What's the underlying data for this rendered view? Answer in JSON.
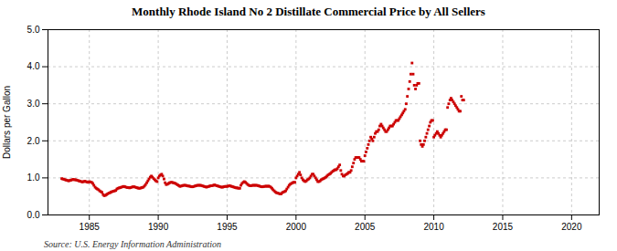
{
  "chart_data": {
    "type": "scatter",
    "title": "Monthly Rhode Island No 2 Distillate Commercial Price by All Sellers",
    "ylabel": "Dollars per Gallon",
    "annotations": [
      "Source: U.S. Energy Information Administration"
    ],
    "color": "#cc0000",
    "marker": "square",
    "grid": true,
    "xlim": [
      1982,
      2022
    ],
    "ylim": [
      0.0,
      5.0
    ],
    "xticks": [
      1985,
      1990,
      1995,
      2000,
      2005,
      2010,
      2015,
      2020
    ],
    "yticks": [
      {
        "value": 0.0,
        "label": "0.0"
      },
      {
        "value": 1.0,
        "label": "1.0"
      },
      {
        "value": 2.0,
        "label": "2.0"
      },
      {
        "value": 3.0,
        "label": "3.0"
      },
      {
        "value": 4.0,
        "label": "4.0"
      },
      {
        "value": 5.0,
        "label": "5.0"
      }
    ],
    "x": [
      1983.0,
      1983.08,
      1983.17,
      1983.25,
      1983.33,
      1983.42,
      1983.5,
      1983.58,
      1983.67,
      1983.75,
      1983.83,
      1983.92,
      1984.0,
      1984.08,
      1984.17,
      1984.25,
      1984.33,
      1984.42,
      1984.5,
      1984.58,
      1984.67,
      1984.75,
      1984.83,
      1984.92,
      1985.0,
      1985.08,
      1985.17,
      1985.25,
      1985.33,
      1985.42,
      1985.5,
      1985.58,
      1985.67,
      1985.75,
      1985.83,
      1985.92,
      1986.0,
      1986.08,
      1986.17,
      1986.25,
      1986.33,
      1986.42,
      1986.5,
      1986.58,
      1986.67,
      1986.75,
      1986.83,
      1986.92,
      1987.0,
      1987.08,
      1987.17,
      1987.25,
      1987.33,
      1987.42,
      1987.5,
      1987.58,
      1987.67,
      1987.75,
      1987.83,
      1987.92,
      1988.0,
      1988.08,
      1988.17,
      1988.25,
      1988.33,
      1988.42,
      1988.5,
      1988.58,
      1988.67,
      1988.75,
      1988.83,
      1988.92,
      1989.0,
      1989.08,
      1989.17,
      1989.25,
      1989.33,
      1989.42,
      1989.5,
      1989.58,
      1989.67,
      1989.75,
      1989.83,
      1989.92,
      1990.0,
      1990.08,
      1990.17,
      1990.25,
      1990.33,
      1990.42,
      1990.5,
      1990.58,
      1990.67,
      1990.75,
      1990.83,
      1990.92,
      1991.0,
      1991.08,
      1991.17,
      1991.25,
      1991.33,
      1991.42,
      1991.5,
      1991.58,
      1991.67,
      1991.75,
      1991.83,
      1991.92,
      1992.0,
      1992.08,
      1992.17,
      1992.25,
      1992.33,
      1992.42,
      1992.5,
      1992.58,
      1992.67,
      1992.75,
      1992.83,
      1992.92,
      1993.0,
      1993.08,
      1993.17,
      1993.25,
      1993.33,
      1993.42,
      1993.5,
      1993.58,
      1993.67,
      1993.75,
      1993.83,
      1993.92,
      1994.0,
      1994.08,
      1994.17,
      1994.25,
      1994.33,
      1994.42,
      1994.5,
      1994.58,
      1994.67,
      1994.75,
      1994.83,
      1994.92,
      1995.0,
      1995.08,
      1995.17,
      1995.25,
      1995.33,
      1995.42,
      1995.5,
      1995.58,
      1995.67,
      1995.75,
      1995.83,
      1995.92,
      1996.0,
      1996.08,
      1996.17,
      1996.25,
      1996.33,
      1996.42,
      1996.5,
      1996.58,
      1996.67,
      1996.75,
      1996.83,
      1996.92,
      1997.0,
      1997.08,
      1997.17,
      1997.25,
      1997.33,
      1997.42,
      1997.5,
      1997.58,
      1997.67,
      1997.75,
      1997.83,
      1997.92,
      1998.0,
      1998.08,
      1998.17,
      1998.25,
      1998.33,
      1998.42,
      1998.5,
      1998.58,
      1998.67,
      1998.75,
      1998.83,
      1998.92,
      1999.0,
      1999.08,
      1999.17,
      1999.25,
      1999.33,
      1999.42,
      1999.5,
      1999.58,
      1999.67,
      1999.75,
      1999.83,
      1999.92,
      2000.0,
      2000.08,
      2000.17,
      2000.25,
      2000.33,
      2000.42,
      2000.5,
      2000.58,
      2000.67,
      2000.75,
      2000.83,
      2000.92,
      2001.0,
      2001.08,
      2001.17,
      2001.25,
      2001.33,
      2001.42,
      2001.5,
      2001.58,
      2001.67,
      2001.75,
      2001.83,
      2001.92,
      2002.0,
      2002.08,
      2002.17,
      2002.25,
      2002.33,
      2002.42,
      2002.5,
      2002.58,
      2002.67,
      2002.75,
      2002.83,
      2002.92,
      2003.0,
      2003.08,
      2003.17,
      2003.25,
      2003.33,
      2003.42,
      2003.5,
      2003.58,
      2003.67,
      2003.75,
      2003.83,
      2003.92,
      2004.0,
      2004.08,
      2004.17,
      2004.25,
      2004.33,
      2004.42,
      2004.5,
      2004.58,
      2004.67,
      2004.75,
      2004.83,
      2004.92,
      2005.0,
      2005.08,
      2005.17,
      2005.25,
      2005.33,
      2005.42,
      2005.5,
      2005.58,
      2005.67,
      2005.75,
      2005.83,
      2005.92,
      2006.0,
      2006.08,
      2006.17,
      2006.25,
      2006.33,
      2006.42,
      2006.5,
      2006.58,
      2006.67,
      2006.75,
      2006.83,
      2006.92,
      2007.0,
      2007.08,
      2007.17,
      2007.25,
      2007.33,
      2007.42,
      2007.5,
      2007.58,
      2007.67,
      2007.75,
      2007.83,
      2007.92,
      2008.0,
      2008.08,
      2008.17,
      2008.25,
      2008.33,
      2008.42,
      2008.5,
      2008.58,
      2008.67,
      2008.75,
      2008.83,
      2008.92,
      2009.0,
      2009.08,
      2009.17,
      2009.25,
      2009.33,
      2009.42,
      2009.5,
      2009.58,
      2009.67,
      2009.75,
      2009.83,
      2009.92,
      2010.0,
      2010.08,
      2010.17,
      2010.25,
      2010.33,
      2010.42,
      2010.5,
      2010.58,
      2010.67,
      2010.75,
      2010.83,
      2010.92,
      2011.0,
      2011.08,
      2011.17,
      2011.25,
      2011.33,
      2011.42,
      2011.5,
      2011.58,
      2011.67,
      2011.75,
      2011.83,
      2011.92,
      2012.0,
      2012.08,
      2012.17
    ],
    "values": [
      0.98,
      0.97,
      0.96,
      0.95,
      0.94,
      0.93,
      0.92,
      0.93,
      0.94,
      0.95,
      0.96,
      0.95,
      0.95,
      0.94,
      0.93,
      0.92,
      0.91,
      0.9,
      0.89,
      0.9,
      0.91,
      0.9,
      0.89,
      0.88,
      0.9,
      0.89,
      0.88,
      0.85,
      0.8,
      0.75,
      0.72,
      0.7,
      0.68,
      0.65,
      0.63,
      0.61,
      0.55,
      0.52,
      0.53,
      0.55,
      0.57,
      0.59,
      0.6,
      0.62,
      0.63,
      0.64,
      0.65,
      0.66,
      0.7,
      0.72,
      0.73,
      0.74,
      0.75,
      0.76,
      0.77,
      0.76,
      0.75,
      0.74,
      0.74,
      0.73,
      0.74,
      0.75,
      0.76,
      0.76,
      0.75,
      0.74,
      0.73,
      0.72,
      0.72,
      0.73,
      0.74,
      0.75,
      0.78,
      0.82,
      0.87,
      0.92,
      0.97,
      1.02,
      1.05,
      1.02,
      0.98,
      0.95,
      0.92,
      0.9,
      1.0,
      1.05,
      1.08,
      1.1,
      1.05,
      0.97,
      0.87,
      0.82,
      0.83,
      0.85,
      0.87,
      0.88,
      0.88,
      0.87,
      0.86,
      0.85,
      0.83,
      0.81,
      0.79,
      0.77,
      0.78,
      0.79,
      0.8,
      0.8,
      0.8,
      0.79,
      0.78,
      0.78,
      0.77,
      0.76,
      0.76,
      0.77,
      0.78,
      0.79,
      0.8,
      0.8,
      0.8,
      0.8,
      0.79,
      0.78,
      0.77,
      0.76,
      0.75,
      0.76,
      0.77,
      0.78,
      0.79,
      0.79,
      0.8,
      0.81,
      0.8,
      0.79,
      0.78,
      0.77,
      0.76,
      0.75,
      0.75,
      0.76,
      0.77,
      0.77,
      0.77,
      0.78,
      0.79,
      0.78,
      0.77,
      0.76,
      0.75,
      0.74,
      0.73,
      0.73,
      0.72,
      0.72,
      0.8,
      0.85,
      0.88,
      0.9,
      0.88,
      0.85,
      0.82,
      0.8,
      0.79,
      0.79,
      0.8,
      0.8,
      0.8,
      0.8,
      0.8,
      0.79,
      0.78,
      0.77,
      0.76,
      0.76,
      0.77,
      0.77,
      0.78,
      0.77,
      0.78,
      0.77,
      0.75,
      0.72,
      0.68,
      0.65,
      0.62,
      0.6,
      0.59,
      0.58,
      0.57,
      0.57,
      0.6,
      0.62,
      0.63,
      0.65,
      0.7,
      0.75,
      0.8,
      0.83,
      0.85,
      0.87,
      0.88,
      0.88,
      1.0,
      1.05,
      1.1,
      1.15,
      1.08,
      1.0,
      0.95,
      0.92,
      0.9,
      0.92,
      0.95,
      0.97,
      1.0,
      1.05,
      1.1,
      1.1,
      1.05,
      1.0,
      0.95,
      0.9,
      0.9,
      0.92,
      0.95,
      0.97,
      0.98,
      1.0,
      1.02,
      1.05,
      1.08,
      1.1,
      1.12,
      1.15,
      1.18,
      1.2,
      1.22,
      1.22,
      1.25,
      1.3,
      1.35,
      1.2,
      1.1,
      1.05,
      1.05,
      1.08,
      1.1,
      1.12,
      1.15,
      1.15,
      1.2,
      1.3,
      1.4,
      1.5,
      1.55,
      1.55,
      1.55,
      1.55,
      1.5,
      1.45,
      1.45,
      1.45,
      1.6,
      1.7,
      1.8,
      1.9,
      2.0,
      2.1,
      2.05,
      2.0,
      2.1,
      2.2,
      2.25,
      2.25,
      2.3,
      2.4,
      2.45,
      2.4,
      2.35,
      2.3,
      2.25,
      2.25,
      2.3,
      2.35,
      2.4,
      2.4,
      2.4,
      2.45,
      2.5,
      2.55,
      2.55,
      2.55,
      2.6,
      2.65,
      2.7,
      2.75,
      2.8,
      2.85,
      3.0,
      3.2,
      3.4,
      3.6,
      3.8,
      4.1,
      3.8,
      3.5,
      3.4,
      3.5,
      3.55,
      3.55,
      2.0,
      1.9,
      1.85,
      1.9,
      2.0,
      2.1,
      2.2,
      2.3,
      2.4,
      2.5,
      2.55,
      2.55,
      2.1,
      2.15,
      2.2,
      2.25,
      2.2,
      2.15,
      2.1,
      2.15,
      2.2,
      2.25,
      2.3,
      2.3,
      2.9,
      3.0,
      3.1,
      3.15,
      3.1,
      3.05,
      3.0,
      2.95,
      2.9,
      2.85,
      2.8,
      2.8,
      3.2,
      3.1,
      3.1
    ]
  }
}
